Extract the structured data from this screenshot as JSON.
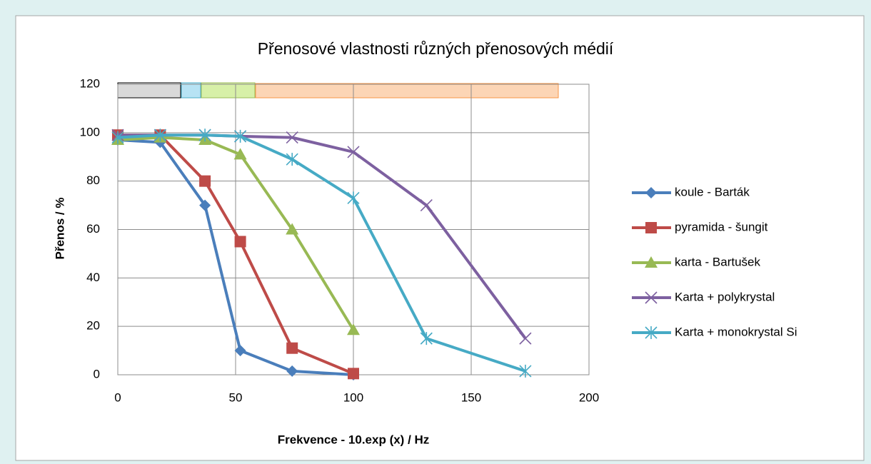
{
  "chart_data": {
    "type": "line",
    "title": "Přenosové vlastnosti různých přenosových médií",
    "x_label": "Frekvence - 10.exp (x) / Hz",
    "y_label": "Přenos / %",
    "xlim": [
      0,
      200
    ],
    "xticks": [
      0,
      50,
      100,
      150,
      200
    ],
    "ylim": [
      0,
      120
    ],
    "yticks": [
      0,
      20,
      40,
      60,
      80,
      100,
      120
    ],
    "grid": true,
    "legend": "right",
    "series": [
      {
        "name": "koule - Barták",
        "color": "#4a7ebb",
        "marker": "diamond",
        "x": [
          0,
          18,
          37,
          52,
          74,
          100
        ],
        "values": [
          97,
          96,
          70,
          10,
          1.5,
          0
        ]
      },
      {
        "name": "pyramida - šungit",
        "color": "#be4b48",
        "marker": "square",
        "x": [
          0,
          18,
          37,
          52,
          74,
          100
        ],
        "values": [
          99,
          99,
          80,
          55,
          11,
          0.5
        ]
      },
      {
        "name": "karta - Bartušek",
        "color": "#98b954",
        "marker": "triangle",
        "x": [
          0,
          18,
          37,
          52,
          74,
          100
        ],
        "values": [
          97,
          98,
          97,
          91,
          60,
          18.5
        ]
      },
      {
        "name": "Karta + polykrystal",
        "color": "#7d60a0",
        "marker": "x",
        "x": [
          0,
          18,
          37,
          52,
          74,
          100,
          131,
          173
        ],
        "values": [
          99,
          99,
          99,
          98.5,
          98,
          92,
          70,
          15
        ]
      },
      {
        "name": "Karta + monokrystal Si",
        "color": "#46aac5",
        "marker": "star",
        "x": [
          0,
          18,
          37,
          52,
          74,
          100,
          131,
          173
        ],
        "values": [
          98,
          99,
          99,
          98.5,
          89,
          73,
          15,
          1.5
        ]
      }
    ]
  }
}
